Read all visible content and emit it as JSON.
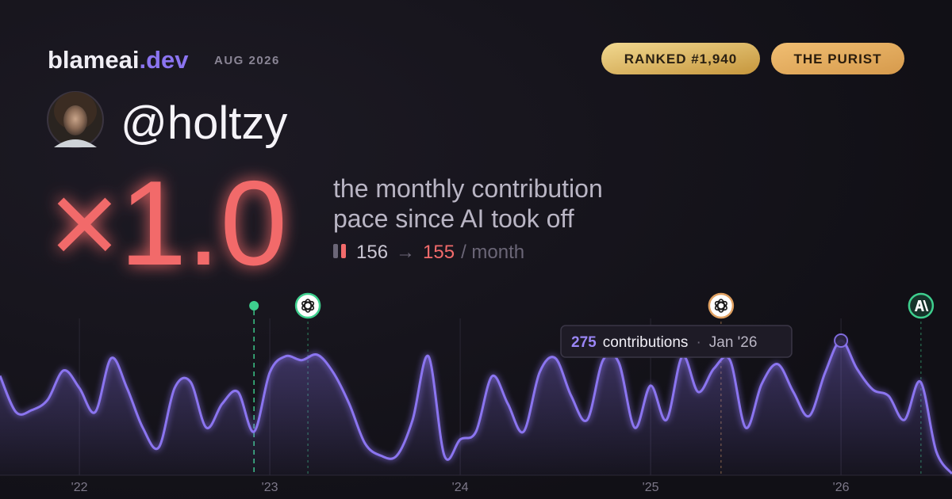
{
  "header": {
    "brand": "blameai",
    "brand_suffix": ".dev",
    "period": "AUG 2026",
    "badges": [
      "RANKED #1,940",
      "THE PURIST"
    ],
    "handle": "@holtzy"
  },
  "summary": {
    "multiplier": "×1.0",
    "description": [
      "the monthly contribution",
      "pace since AI took off"
    ],
    "before": "156",
    "arrow": "→",
    "after": "155",
    "unit": "/ month"
  },
  "chart_data": {
    "type": "line",
    "x": [
      2021.583,
      2021.667,
      2021.75,
      2021.833,
      2021.917,
      2022,
      2022.083,
      2022.167,
      2022.25,
      2022.333,
      2022.417,
      2022.5,
      2022.583,
      2022.667,
      2022.75,
      2022.833,
      2022.917,
      2023,
      2023.083,
      2023.167,
      2023.25,
      2023.333,
      2023.417,
      2023.5,
      2023.583,
      2023.667,
      2023.75,
      2023.833,
      2023.917,
      2024,
      2024.083,
      2024.167,
      2024.25,
      2024.333,
      2024.417,
      2024.5,
      2024.583,
      2024.667,
      2024.75,
      2024.833,
      2024.917,
      2025,
      2025.083,
      2025.167,
      2025.25,
      2025.333,
      2025.417,
      2025.5,
      2025.583,
      2025.667,
      2025.75,
      2025.833,
      2025.917,
      2026,
      2026.083,
      2026.167,
      2026.25,
      2026.333,
      2026.417,
      2026.5,
      2026.583
    ],
    "series": [
      {
        "name": "contributions",
        "color": "#8b74f0",
        "values": [
          203,
          129,
          133,
          154,
          214,
          178,
          129,
          239,
          178,
          97,
          57,
          178,
          191,
          97,
          146,
          170,
          89,
          210,
          243,
          235,
          246,
          210,
          146,
          65,
          40,
          40,
          113,
          243,
          40,
          73,
          89,
          202,
          146,
          89,
          210,
          239,
          162,
          113,
          235,
          230,
          97,
          183,
          113,
          243,
          170,
          218,
          235,
          97,
          186,
          227,
          170,
          121,
          210,
          275,
          218,
          175,
          162,
          113,
          191,
          49,
          3
        ]
      }
    ],
    "tooltip_label": "contributions",
    "tooltip_date": "Jan '26",
    "tooltip_index_value": "chart_data.series.0.values.53",
    "xlim": [
      2021.583,
      2026.583
    ],
    "ylim": [
      0,
      275
    ],
    "xticks": [
      {
        "value": 2022,
        "label": "'22"
      },
      {
        "value": 2023,
        "label": "'23"
      },
      {
        "value": 2024,
        "label": "'24"
      },
      {
        "value": 2025,
        "label": "'25"
      },
      {
        "value": 2026,
        "label": "'26"
      }
    ],
    "grid": true,
    "events": [
      {
        "x": 2022.917,
        "color": "#3ecf8e"
      },
      {
        "x": 2023.2,
        "color": "#3ecf8e"
      },
      {
        "x": 2025.37,
        "color": "#e0a060"
      },
      {
        "x": 2026.42,
        "color": "#3ecf8e"
      }
    ]
  }
}
